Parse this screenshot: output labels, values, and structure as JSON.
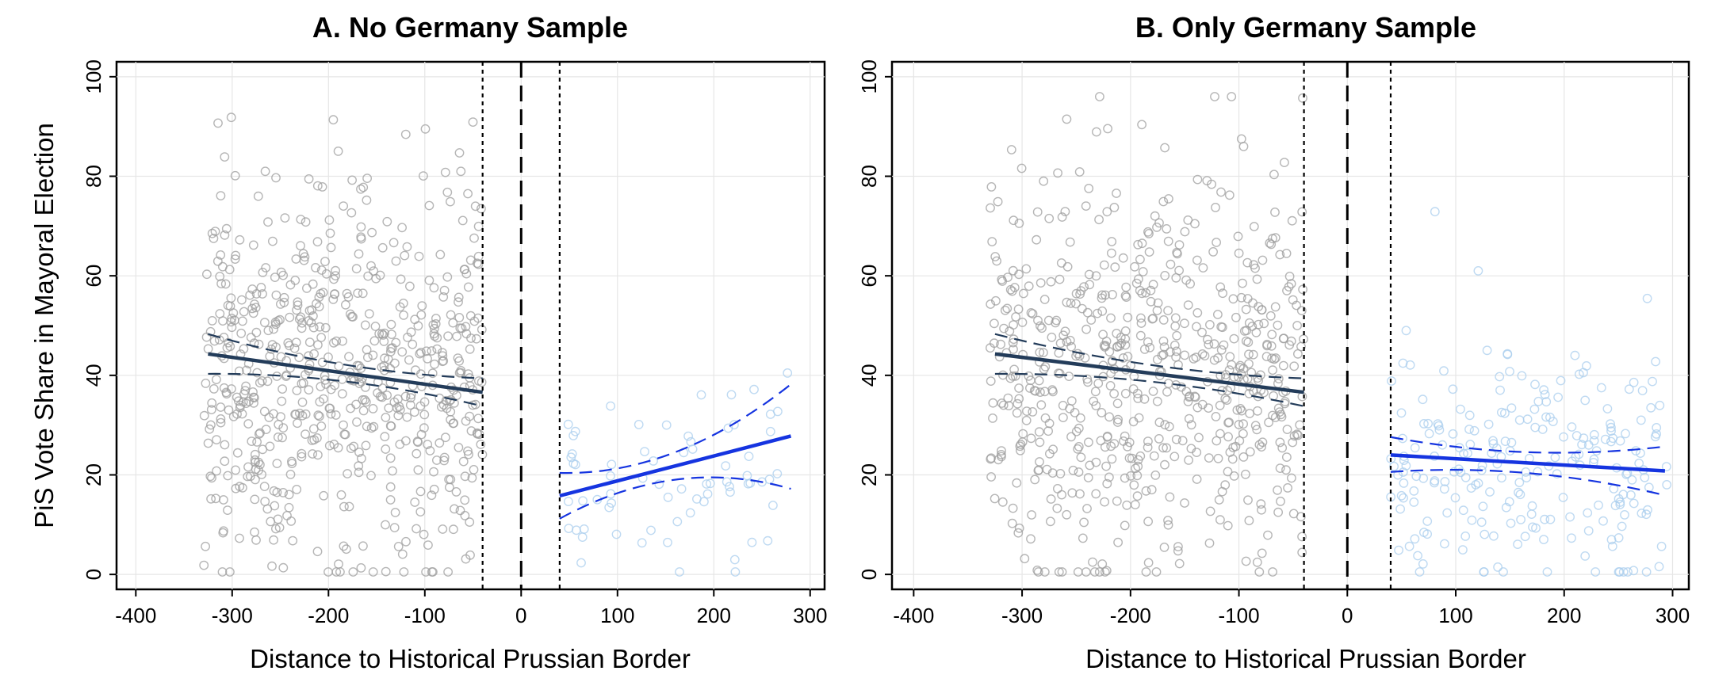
{
  "chart_data": [
    {
      "type": "scatter",
      "title": "A. No Germany Sample",
      "xlabel": "Distance to Historical Prussian Border",
      "ylabel": "PiS Vote Share in Mayoral Election",
      "xlim": [
        -420,
        315
      ],
      "ylim": [
        -3,
        103
      ],
      "xticks": [
        -400,
        -300,
        -200,
        -100,
        0,
        100,
        200,
        300
      ],
      "yticks": [
        0,
        20,
        40,
        60,
        80,
        100
      ],
      "grid": true,
      "legend": "none",
      "vlines": [
        {
          "x": 0,
          "style": "long-dash"
        },
        {
          "x": -40,
          "style": "dotted"
        },
        {
          "x": 40,
          "style": "dotted"
        }
      ],
      "series": [
        {
          "side": "left",
          "color": "#9e9e9e",
          "marker": "hollow-circle",
          "x_range": [
            -330,
            -40
          ],
          "n_points": 650,
          "y_mean": 40,
          "y_sd": 19,
          "fit": {
            "x": [
              -325,
              -40
            ],
            "y": [
              44.3,
              36.6
            ],
            "ci_low": [
              40.3,
              33.8
            ],
            "ci_high": [
              48.3,
              39.4
            ],
            "color": "#233c5a"
          }
        },
        {
          "side": "right",
          "color": "#a9cdee",
          "marker": "hollow-circle",
          "x_range": [
            40,
            280
          ],
          "n_points": 70,
          "y_mean": 18,
          "y_sd": 10,
          "fit": {
            "x": [
              40,
              280
            ],
            "y": [
              15.8,
              27.8
            ],
            "ci_low": [
              11.2,
              17.2
            ],
            "ci_high": [
              20.4,
              38.2
            ],
            "color": "#1534e0"
          }
        }
      ]
    },
    {
      "type": "scatter",
      "title": "B. Only Germany Sample",
      "xlabel": "Distance to Historical Prussian Border",
      "ylabel": "",
      "xlim": [
        -420,
        315
      ],
      "ylim": [
        -3,
        103
      ],
      "xticks": [
        -400,
        -300,
        -200,
        -100,
        0,
        100,
        200,
        300
      ],
      "yticks": [
        0,
        20,
        40,
        60,
        80,
        100
      ],
      "grid": true,
      "legend": "none",
      "vlines": [
        {
          "x": 0,
          "style": "long-dash"
        },
        {
          "x": -40,
          "style": "dotted"
        },
        {
          "x": 40,
          "style": "dotted"
        }
      ],
      "series": [
        {
          "side": "left",
          "color": "#9e9e9e",
          "marker": "hollow-circle",
          "x_range": [
            -330,
            -40
          ],
          "n_points": 650,
          "y_mean": 40,
          "y_sd": 19,
          "fit": {
            "x": [
              -325,
              -40
            ],
            "y": [
              44.3,
              36.6
            ],
            "ci_low": [
              40.3,
              33.8
            ],
            "ci_high": [
              48.3,
              39.4
            ],
            "color": "#233c5a"
          }
        },
        {
          "side": "right",
          "color": "#a9cdee",
          "marker": "hollow-circle",
          "x_range": [
            40,
            295
          ],
          "n_points": 230,
          "y_mean": 22,
          "y_sd": 12,
          "fit": {
            "x": [
              40,
              293
            ],
            "y": [
              24.0,
              20.8
            ],
            "ci_low": [
              20.6,
              15.9
            ],
            "ci_high": [
              27.6,
              25.7
            ],
            "color": "#1534e0"
          }
        }
      ]
    }
  ]
}
